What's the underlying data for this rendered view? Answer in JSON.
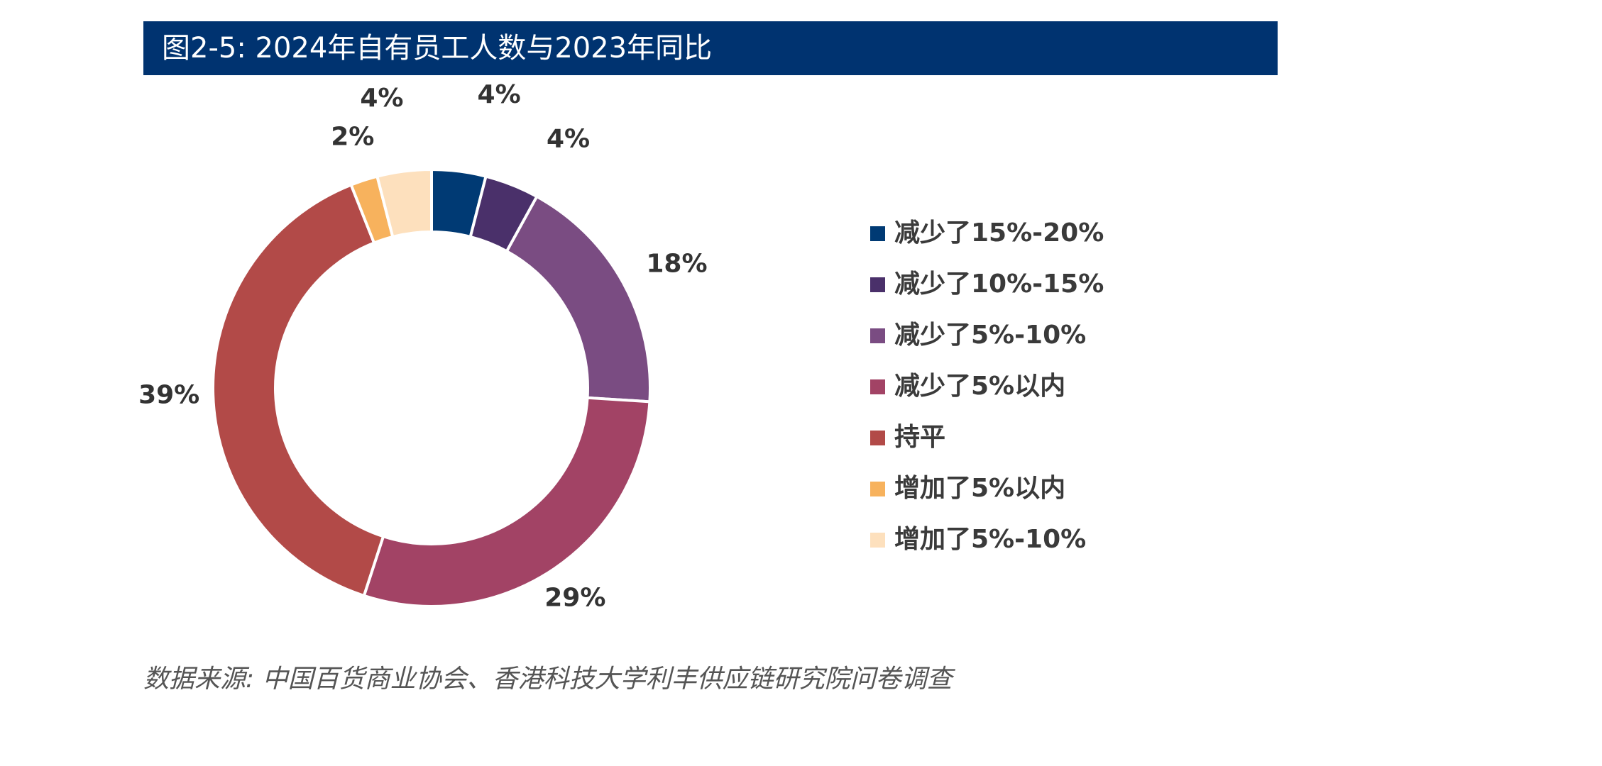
{
  "title": "图2-5: 2024年自有员工人数与2023年同比",
  "chart_data": {
    "type": "pie",
    "donut": true,
    "title": "图2-5: 2024年自有员工人数与2023年同比",
    "categories": [
      "减少了15%-20%",
      "减少了10%-15%",
      "减少了5%-10%",
      "减少了5%以内",
      "持平",
      "增加了5%以内",
      "增加了5%-10%"
    ],
    "values": [
      4,
      4,
      18,
      29,
      39,
      2,
      4
    ],
    "labels": [
      "4%",
      "4%",
      "18%",
      "29%",
      "39%",
      "2%",
      "4%"
    ],
    "colors": [
      "#003a74",
      "#4a306a",
      "#7a4c82",
      "#a24365",
      "#b24a48",
      "#f7b25d",
      "#fde0bd"
    ],
    "legend_position": "right"
  },
  "source": "数据来源: 中国百货商业协会、香港科技大学利丰供应链研究院问卷调查"
}
